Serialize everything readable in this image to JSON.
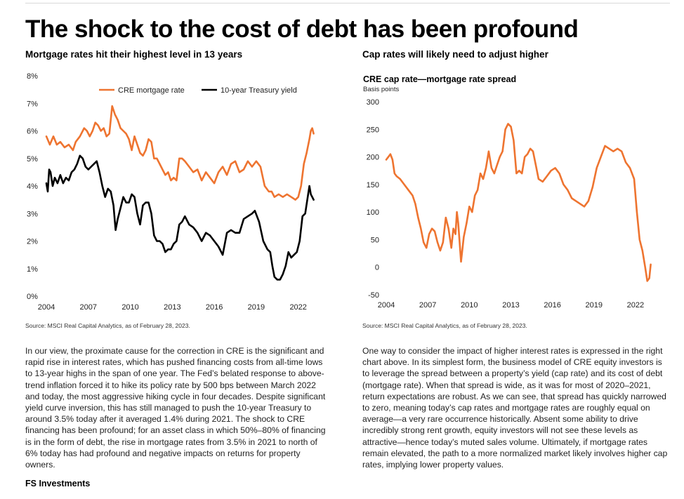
{
  "title": "The shock to the cost of debt has been profound",
  "left_panel": {
    "subtitle": "Mortgage rates hit their highest level in 13 years",
    "source": "Source: MSCI Real Capital Analytics, as of February 28, 2023.",
    "body": "In our view, the proximate cause for the correction in CRE is the significant and rapid rise in interest rates, which has pushed financing costs from all-time lows to 13-year highs in the span of one year. The Fed’s belated response to above-trend inflation forced it to hike its policy rate by 500 bps between March 2022 and today, the most aggressive hiking cycle in four decades. Despite significant yield curve inversion, this has still managed to push the 10-year Treasury to around 3.5% today after it averaged 1.4% during 2021. The shock to CRE financing has been profound; for an asset class in which 50%–80% of financing is in the form of debt, the rise in mortgage rates from 3.5% in 2021 to north of 6% today has had profound and negative impacts on returns for property owners."
  },
  "right_panel": {
    "subtitle": "Cap rates will likely need to adjust higher",
    "source": "Source: MSCI Real Capital Analytics, as of February 28, 2023.",
    "body": "One way to consider the impact of higher interest rates is expressed in the right chart above. In its simplest form, the business model of CRE equity investors is to leverage the spread between a property’s yield (cap rate) and its cost of debt (mortgage rate). When that spread is wide, as it was for most of 2020–2021, return expectations are robust. As we can see, that spread has quickly narrowed to zero, meaning today’s cap rates and mortgage rates are roughly equal on average—a very rare occurrence historically. Absent some ability to drive incredibly strong rent growth, equity investors will not see these levels as attractive—hence today’s muted sales volume. Ultimately, if mortgage rates remain elevated, the path to a more normalized market likely involves higher cap rates, implying lower property values."
  },
  "footer": "FS Investments",
  "colors": {
    "orange": "#EE7430",
    "black": "#000000"
  },
  "chart_data": [
    {
      "type": "line",
      "title": "",
      "xlabel": "",
      "ylabel": "",
      "x_ticks": [
        "2004",
        "2007",
        "2010",
        "2013",
        "2016",
        "2019",
        "2022"
      ],
      "y_ticks": [
        "0%",
        "1%",
        "2%",
        "3%",
        "4%",
        "5%",
        "6%",
        "7%",
        "8%"
      ],
      "xlim": [
        2004.0,
        2023.17
      ],
      "ylim": [
        0,
        8
      ],
      "grid": false,
      "legend": "top-center",
      "series": [
        {
          "name": "CRE mortgage rate",
          "color": "#EE7430",
          "x": [
            2004.0,
            2004.25,
            2004.5,
            2004.75,
            2005.0,
            2005.3,
            2005.6,
            2005.9,
            2006.1,
            2006.4,
            2006.7,
            2006.9,
            2007.1,
            2007.3,
            2007.5,
            2007.7,
            2007.9,
            2008.1,
            2008.3,
            2008.5,
            2008.7,
            2008.9,
            2009.1,
            2009.3,
            2009.5,
            2009.7,
            2009.9,
            2010.1,
            2010.3,
            2010.5,
            2010.7,
            2010.9,
            2011.1,
            2011.3,
            2011.5,
            2011.7,
            2011.9,
            2012.1,
            2012.3,
            2012.5,
            2012.7,
            2012.9,
            2013.1,
            2013.3,
            2013.5,
            2013.7,
            2013.9,
            2014.2,
            2014.5,
            2014.8,
            2015.1,
            2015.4,
            2015.7,
            2016.0,
            2016.3,
            2016.6,
            2016.9,
            2017.2,
            2017.5,
            2017.8,
            2018.1,
            2018.4,
            2018.7,
            2019.0,
            2019.3,
            2019.6,
            2019.9,
            2020.1,
            2020.3,
            2020.6,
            2020.9,
            2021.2,
            2021.5,
            2021.8,
            2022.0,
            2022.2,
            2022.4,
            2022.6,
            2022.8,
            2022.9,
            2023.0,
            2023.1
          ],
          "y": [
            5.8,
            5.5,
            5.8,
            5.5,
            5.6,
            5.4,
            5.5,
            5.3,
            5.6,
            5.8,
            6.1,
            6.0,
            5.8,
            6.0,
            6.3,
            6.2,
            6.0,
            6.1,
            5.8,
            5.9,
            6.9,
            6.6,
            6.4,
            6.1,
            6.0,
            5.9,
            5.7,
            5.3,
            5.8,
            5.5,
            5.2,
            5.1,
            5.3,
            5.7,
            5.6,
            5.0,
            5.0,
            4.8,
            4.6,
            4.4,
            4.5,
            4.2,
            4.3,
            4.2,
            5.0,
            5.0,
            4.9,
            4.7,
            4.5,
            4.6,
            4.2,
            4.5,
            4.3,
            4.1,
            4.5,
            4.7,
            4.4,
            4.8,
            4.9,
            4.5,
            4.6,
            4.9,
            4.7,
            4.9,
            4.7,
            4.0,
            3.8,
            3.8,
            3.6,
            3.7,
            3.6,
            3.7,
            3.6,
            3.5,
            3.6,
            4.0,
            4.8,
            5.2,
            5.7,
            6.0,
            6.1,
            5.9
          ]
        },
        {
          "name": "10-year Treasury yield",
          "color": "#000000",
          "x": [
            2004.0,
            2004.1,
            2004.2,
            2004.3,
            2004.45,
            2004.6,
            2004.8,
            2005.0,
            2005.2,
            2005.4,
            2005.6,
            2005.8,
            2006.0,
            2006.2,
            2006.4,
            2006.6,
            2006.8,
            2007.0,
            2007.2,
            2007.4,
            2007.6,
            2007.8,
            2008.0,
            2008.2,
            2008.4,
            2008.6,
            2008.8,
            2008.95,
            2009.1,
            2009.3,
            2009.5,
            2009.7,
            2009.9,
            2010.1,
            2010.3,
            2010.5,
            2010.7,
            2010.9,
            2011.1,
            2011.3,
            2011.5,
            2011.7,
            2011.9,
            2012.1,
            2012.3,
            2012.5,
            2012.7,
            2012.9,
            2013.1,
            2013.3,
            2013.5,
            2013.7,
            2013.9,
            2014.2,
            2014.5,
            2014.8,
            2015.1,
            2015.4,
            2015.7,
            2016.0,
            2016.3,
            2016.6,
            2016.9,
            2017.2,
            2017.5,
            2017.8,
            2018.1,
            2018.4,
            2018.7,
            2018.9,
            2019.2,
            2019.5,
            2019.8,
            2020.0,
            2020.15,
            2020.3,
            2020.5,
            2020.7,
            2020.9,
            2021.1,
            2021.3,
            2021.5,
            2021.7,
            2021.9,
            2022.1,
            2022.3,
            2022.5,
            2022.65,
            2022.8,
            2022.9,
            2023.0,
            2023.1
          ],
          "y": [
            4.1,
            3.8,
            4.6,
            4.5,
            4.0,
            4.3,
            4.1,
            4.4,
            4.1,
            4.3,
            4.2,
            4.5,
            4.6,
            4.8,
            5.1,
            5.0,
            4.7,
            4.6,
            4.7,
            4.8,
            4.9,
            4.5,
            4.0,
            3.6,
            3.9,
            3.8,
            3.3,
            2.4,
            2.8,
            3.2,
            3.6,
            3.4,
            3.4,
            3.7,
            3.6,
            3.0,
            2.6,
            3.3,
            3.4,
            3.4,
            3.0,
            2.2,
            2.0,
            2.0,
            1.9,
            1.6,
            1.7,
            1.7,
            1.9,
            2.0,
            2.6,
            2.7,
            2.9,
            2.6,
            2.5,
            2.3,
            2.0,
            2.3,
            2.2,
            2.0,
            1.8,
            1.5,
            2.3,
            2.4,
            2.3,
            2.3,
            2.8,
            2.9,
            3.0,
            3.1,
            2.7,
            2.0,
            1.7,
            1.6,
            1.1,
            0.7,
            0.6,
            0.6,
            0.8,
            1.1,
            1.6,
            1.4,
            1.5,
            1.6,
            2.0,
            2.9,
            3.0,
            3.5,
            4.0,
            3.7,
            3.6,
            3.5
          ]
        }
      ]
    },
    {
      "type": "line",
      "title": "CRE cap rate—mortgage rate spread",
      "subtitle": "Basis points",
      "xlabel": "",
      "ylabel": "",
      "x_ticks": [
        "2004",
        "2007",
        "2010",
        "2013",
        "2016",
        "2019",
        "2022"
      ],
      "y_ticks": [
        "-50",
        "0",
        "50",
        "100",
        "150",
        "200",
        "250",
        "300"
      ],
      "xlim": [
        2004.0,
        2023.17
      ],
      "ylim": [
        -50,
        300
      ],
      "grid": false,
      "series": [
        {
          "name": "",
          "color": "#EE7430",
          "x": [
            2004.0,
            2004.15,
            2004.3,
            2004.45,
            2004.6,
            2004.75,
            2005.0,
            2005.3,
            2005.6,
            2005.9,
            2006.1,
            2006.3,
            2006.5,
            2006.7,
            2006.9,
            2007.1,
            2007.3,
            2007.5,
            2007.7,
            2007.9,
            2008.1,
            2008.3,
            2008.5,
            2008.7,
            2008.85,
            2009.0,
            2009.1,
            2009.2,
            2009.4,
            2009.6,
            2009.8,
            2010.0,
            2010.2,
            2010.4,
            2010.6,
            2010.8,
            2011.0,
            2011.2,
            2011.4,
            2011.6,
            2011.8,
            2012.0,
            2012.2,
            2012.4,
            2012.6,
            2012.8,
            2013.0,
            2013.2,
            2013.4,
            2013.6,
            2013.8,
            2014.0,
            2014.2,
            2014.4,
            2014.6,
            2014.8,
            2015.0,
            2015.3,
            2015.6,
            2015.9,
            2016.2,
            2016.5,
            2016.8,
            2017.1,
            2017.4,
            2017.7,
            2018.0,
            2018.3,
            2018.6,
            2018.9,
            2019.2,
            2019.5,
            2019.8,
            2020.1,
            2020.4,
            2020.7,
            2021.0,
            2021.3,
            2021.6,
            2021.9,
            2022.1,
            2022.3,
            2022.5,
            2022.7,
            2022.85,
            2023.0,
            2023.1
          ],
          "y": [
            195,
            200,
            205,
            195,
            170,
            165,
            160,
            150,
            140,
            130,
            115,
            90,
            70,
            45,
            35,
            60,
            70,
            65,
            45,
            30,
            45,
            90,
            70,
            35,
            70,
            60,
            100,
            80,
            10,
            55,
            80,
            110,
            100,
            130,
            140,
            170,
            160,
            180,
            210,
            180,
            170,
            185,
            200,
            210,
            250,
            260,
            255,
            230,
            170,
            175,
            170,
            200,
            205,
            215,
            210,
            185,
            160,
            155,
            165,
            175,
            180,
            170,
            150,
            140,
            125,
            120,
            115,
            110,
            120,
            145,
            180,
            200,
            220,
            215,
            210,
            215,
            210,
            190,
            180,
            160,
            100,
            50,
            30,
            0,
            -25,
            -20,
            5
          ]
        }
      ]
    }
  ]
}
